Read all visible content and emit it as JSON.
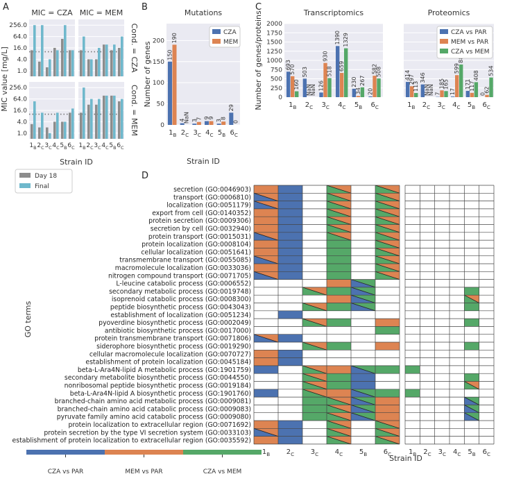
{
  "colors": {
    "cza_par": "#4c72b0",
    "mem_par": "#dd8452",
    "cza_mem": "#55a868",
    "day18": "#8c8c8c",
    "final": "#6fb8cc",
    "empty": "#ffffff",
    "grid_line": "#444444"
  },
  "panel_labels": {
    "a": "A",
    "b": "B",
    "c": "C",
    "d": "D"
  },
  "chart_data": [
    {
      "id": "A",
      "type": "bar",
      "title": "MIC",
      "column_titles": [
        "MIC = CZA",
        "MIC = MEM"
      ],
      "row_titles": [
        "Cond. = CZA",
        "Cond. = MEM"
      ],
      "ylabel": "MIC value [mg/L]",
      "xlabel": "Strain ID",
      "yscale": "log2",
      "yticks": [
        "1.0",
        "4.0",
        "16.0",
        "64.0",
        "256.0"
      ],
      "ytick_values": [
        1,
        4,
        16,
        64,
        256
      ],
      "ylim": [
        0.5,
        512
      ],
      "threshold": 10,
      "categories": [
        "1B",
        "2C",
        "3C",
        "4C",
        "5B",
        "6C"
      ],
      "category_labels": [
        {
          "base": "1",
          "sub": "B"
        },
        {
          "base": "2",
          "sub": "C"
        },
        {
          "base": "3",
          "sub": "C"
        },
        {
          "base": "4",
          "sub": "C"
        },
        {
          "base": "5",
          "sub": "B"
        },
        {
          "base": "6",
          "sub": "C"
        }
      ],
      "legend": [
        "Day 18",
        "Final"
      ],
      "panels": [
        {
          "day18": [
            12,
            3,
            1.5,
            16,
            48,
            12
          ],
          "final": [
            256,
            256,
            4,
            12,
            256,
            12
          ]
        },
        {
          "day18": [
            12,
            4,
            4,
            24,
            12,
            16
          ],
          "final": [
            64,
            4,
            16,
            24,
            24,
            64
          ]
        },
        {
          "day18": [
            3,
            2,
            2,
            4,
            4,
            12
          ],
          "final": [
            48,
            12,
            1,
            12,
            4,
            20
          ]
        },
        {
          "day18": [
            12,
            32,
            32,
            96,
            96,
            48
          ],
          "final": [
            256,
            64,
            64,
            96,
            96,
            64
          ]
        }
      ]
    },
    {
      "id": "B",
      "type": "bar",
      "title": "Mutations",
      "xlabel": "Strain ID",
      "ylabel": "Number of genes",
      "ylim": [
        0,
        240
      ],
      "yticks": [
        0,
        50,
        100,
        150,
        200
      ],
      "categories": [
        "1B",
        "2C",
        "3C",
        "4C",
        "5B",
        "6C"
      ],
      "category_labels": [
        {
          "base": "1",
          "sub": "B"
        },
        {
          "base": "2",
          "sub": "C"
        },
        {
          "base": "3",
          "sub": "C"
        },
        {
          "base": "4",
          "sub": "C"
        },
        {
          "base": "5",
          "sub": "B"
        },
        {
          "base": "6",
          "sub": "C"
        }
      ],
      "series": [
        {
          "name": "CZA",
          "values": [
            150,
            4,
            3,
            9,
            3,
            29
          ],
          "labels": [
            "150",
            "4",
            "3",
            "9",
            "3",
            "29"
          ]
        },
        {
          "name": "MEM",
          "values": [
            190,
            0,
            7,
            9,
            8,
            0
          ],
          "labels": [
            "190",
            "NaN",
            "7",
            "9",
            "8",
            "0"
          ]
        }
      ],
      "legend": [
        "CZA",
        "MEM"
      ]
    },
    {
      "id": "C",
      "type": "bar",
      "titles": [
        "Transcriptomics",
        "Proteomics"
      ],
      "ylabel": "Number of genes/proteins",
      "ylim": [
        0,
        2000
      ],
      "yticks": [
        0,
        250,
        500,
        750,
        1000,
        1250,
        1500,
        1750,
        2000
      ],
      "categories": [
        "1B",
        "2C",
        "3C",
        "4C",
        "5B",
        "6C"
      ],
      "category_labels": [
        {
          "base": "1",
          "sub": "B"
        },
        {
          "base": "2",
          "sub": "C"
        },
        {
          "base": "3",
          "sub": "C"
        },
        {
          "base": "4",
          "sub": "C"
        },
        {
          "base": "5",
          "sub": "B"
        },
        {
          "base": "6",
          "sub": "C"
        }
      ],
      "legend": [
        "CZA vs PAR",
        "MEM vs PAR",
        "CZA vs MEM"
      ],
      "transcriptomics": [
        {
          "name": "CZA vs PAR",
          "values": [
            693,
            503,
            126,
            1390,
            230,
            20
          ],
          "labels": [
            "693",
            "503",
            "126",
            "1390",
            "230",
            "20"
          ]
        },
        {
          "name": "MEM vs PAR",
          "values": [
            570,
            0,
            930,
            659,
            34,
            582
          ],
          "labels": [
            "570",
            "NaN",
            "930",
            "659",
            "34",
            "582"
          ]
        },
        {
          "name": "CZA vs MEM",
          "values": [
            160,
            0,
            518,
            1329,
            267,
            508
          ],
          "labels": [
            "160",
            "NaN",
            "518",
            "1329",
            "267",
            "508"
          ]
        }
      ],
      "proteomics": [
        {
          "name": "CZA vs PAR",
          "values": [
            414,
            346,
            7,
            17,
            171,
            0
          ],
          "labels": [
            "414",
            "346",
            "7",
            "17",
            "171",
            "0"
          ]
        },
        {
          "name": "MEM vs PAR",
          "values": [
            297,
            0,
            185,
            599,
            117,
            62
          ],
          "labels": [
            "297",
            "NaN",
            "185",
            "599",
            "117",
            "62"
          ]
        },
        {
          "name": "CZA vs MEM",
          "values": [
            113,
            0,
            165,
            888,
            408,
            534
          ],
          "labels": [
            "113",
            "NaN",
            "165",
            "888",
            "408",
            "534"
          ]
        }
      ]
    },
    {
      "id": "D",
      "type": "heatmap",
      "ylabel": "GO terms",
      "xlabel": "Strain ID",
      "categories": [
        "1B",
        "2C",
        "3C",
        "4C",
        "5B",
        "6C"
      ],
      "category_labels": [
        {
          "base": "1",
          "sub": "B"
        },
        {
          "base": "2",
          "sub": "C"
        },
        {
          "base": "3",
          "sub": "C"
        },
        {
          "base": "4",
          "sub": "C"
        },
        {
          "base": "5",
          "sub": "B"
        },
        {
          "base": "6",
          "sub": "C"
        }
      ],
      "cell_legend": {
        "o": "MEM vs PAR",
        "b": "CZA vs PAR",
        "g": "CZA vs MEM",
        "ob": "MEM vs PAR + CZA vs PAR",
        "gb": "CZA vs MEM + CZA vs PAR",
        "og": "MEM vs PAR + CZA vs MEM",
        ".": "none"
      },
      "terms": [
        "secretion (GO:0046903)",
        "transport (GO:0006810)",
        "localization (GO:0051179)",
        "export from cell (GO:0140352)",
        "protein secretion (GO:0009306)",
        "secretion by cell (GO:0032940)",
        "protein transport (GO:0015031)",
        "protein localization (GO:0008104)",
        "cellular localization (GO:0051641)",
        "transmembrane transport (GO:0055085)",
        "macromolecule localization (GO:0033036)",
        "nitrogen compound transport (GO:0071705)",
        "L-leucine catabolic process (GO:0006552)",
        "secondary metabolic process (GO:0019748)",
        "isoprenoid catabolic process (GO:0008300)",
        "peptide biosynthetic process (GO:0043043)",
        "establishment of localization (GO:0051234)",
        "pyoverdine biosynthetic process (GO:0002049)",
        "antibiotic biosynthetic process (GO:0017000)",
        "protein transmembrane transport (GO:0071806)",
        "siderophore biosynthetic process (GO:0019290)",
        "cellular macromolecule localization (GO:0070727)",
        "establishment of protein localization (GO:0045184)",
        "beta-L-Ara4N-lipid A metabolic process (GO:1901759)",
        "secondary metabolite biosynthetic process (GO:0044550)",
        "nonribosomal peptide biosynthetic process (GO:0019184)",
        "beta-L-Ara4N-lipid A biosynthetic process (GO:1901760)",
        "branched-chain amino acid metabolic process (GO:0009081)",
        "branched-chain amino acid catabolic process (GO:0009083)",
        "pyruvate family amino acid catabolic process (GO:0009080)",
        "protein localization to extracellular region (GO:0071692)",
        "protein secretion by the type VI secretion system (GO:0033103)",
        "establishment of protein localization to extracellular region (GO:0035592)"
      ],
      "transcriptomics_cells": [
        [
          "o",
          "b",
          ".",
          "og",
          ".",
          "og"
        ],
        [
          "ob",
          "b",
          ".",
          "og",
          ".",
          "og"
        ],
        [
          "ob",
          "b",
          ".",
          "og",
          ".",
          "og"
        ],
        [
          "o",
          "b",
          ".",
          "og",
          ".",
          "og"
        ],
        [
          "o",
          "b",
          ".",
          "og",
          ".",
          "og"
        ],
        [
          "o",
          "b",
          ".",
          "og",
          ".",
          "og"
        ],
        [
          "ob",
          "b",
          ".",
          "og",
          ".",
          "og"
        ],
        [
          "o",
          "b",
          ".",
          "g",
          ".",
          "og"
        ],
        [
          "o",
          "b",
          ".",
          "g",
          ".",
          "og"
        ],
        [
          "ob",
          "b",
          ".",
          "g",
          ".",
          "og"
        ],
        [
          "o",
          "b",
          ".",
          "g",
          ".",
          "og"
        ],
        [
          "ob",
          "b",
          ".",
          "g",
          ".",
          "og"
        ],
        [
          ".",
          ".",
          ".",
          "o",
          "gb",
          "."
        ],
        [
          ".",
          ".",
          "og",
          "g",
          "gb",
          "."
        ],
        [
          ".",
          ".",
          ".",
          "o",
          "gb",
          "."
        ],
        [
          ".",
          ".",
          "og",
          "g",
          "gb",
          "."
        ],
        [
          ".",
          "b",
          ".",
          ".",
          ".",
          "."
        ],
        [
          ".",
          ".",
          "og",
          "g",
          ".",
          "o"
        ],
        [
          ".",
          ".",
          ".",
          ".",
          ".",
          "g"
        ],
        [
          "ob",
          "b",
          ".",
          ".",
          ".",
          "."
        ],
        [
          ".",
          ".",
          "og",
          "g",
          ".",
          "o"
        ],
        [
          "o",
          "b",
          ".",
          ".",
          ".",
          "."
        ],
        [
          "o",
          "b",
          ".",
          ".",
          ".",
          "."
        ],
        [
          "b",
          ".",
          "og",
          "o",
          "gb",
          "g"
        ],
        [
          ".",
          ".",
          "og",
          "g",
          "b",
          "."
        ],
        [
          ".",
          ".",
          "og",
          "g",
          "b",
          "."
        ],
        [
          "b",
          ".",
          "og",
          "o",
          "gb",
          "g"
        ],
        [
          ".",
          ".",
          "g",
          "og",
          "gb",
          "o"
        ],
        [
          ".",
          ".",
          "g",
          "og",
          "gb",
          "o"
        ],
        [
          ".",
          ".",
          "g",
          "og",
          "gb",
          "o"
        ],
        [
          "o",
          "b",
          ".",
          "og",
          ".",
          "og"
        ],
        [
          "ob",
          "b",
          ".",
          "og",
          ".",
          "og"
        ],
        [
          "o",
          "b",
          ".",
          "og",
          ".",
          "og"
        ]
      ],
      "proteomics_cells": [
        [
          ".",
          ".",
          ".",
          ".",
          ".",
          "."
        ],
        [
          ".",
          ".",
          ".",
          ".",
          ".",
          "."
        ],
        [
          ".",
          ".",
          ".",
          ".",
          ".",
          "."
        ],
        [
          ".",
          ".",
          ".",
          ".",
          ".",
          "."
        ],
        [
          ".",
          ".",
          ".",
          ".",
          ".",
          "."
        ],
        [
          ".",
          ".",
          ".",
          ".",
          ".",
          "."
        ],
        [
          ".",
          ".",
          ".",
          ".",
          ".",
          "."
        ],
        [
          ".",
          ".",
          ".",
          ".",
          ".",
          "."
        ],
        [
          ".",
          ".",
          ".",
          ".",
          ".",
          "."
        ],
        [
          ".",
          ".",
          ".",
          ".",
          ".",
          "."
        ],
        [
          ".",
          ".",
          ".",
          ".",
          ".",
          "."
        ],
        [
          ".",
          ".",
          ".",
          ".",
          ".",
          "."
        ],
        [
          ".",
          ".",
          ".",
          ".",
          ".",
          "."
        ],
        [
          ".",
          ".",
          ".",
          ".",
          "g",
          "."
        ],
        [
          ".",
          ".",
          ".",
          ".",
          "og",
          "."
        ],
        [
          ".",
          ".",
          ".",
          ".",
          "g",
          "."
        ],
        [
          ".",
          ".",
          ".",
          ".",
          ".",
          "."
        ],
        [
          ".",
          ".",
          ".",
          ".",
          "g",
          "."
        ],
        [
          ".",
          ".",
          ".",
          ".",
          ".",
          "."
        ],
        [
          ".",
          ".",
          ".",
          ".",
          ".",
          "."
        ],
        [
          ".",
          ".",
          ".",
          ".",
          "g",
          "."
        ],
        [
          ".",
          ".",
          ".",
          ".",
          ".",
          "."
        ],
        [
          ".",
          ".",
          ".",
          ".",
          ".",
          "."
        ],
        [
          "g",
          ".",
          ".",
          ".",
          ".",
          "."
        ],
        [
          ".",
          ".",
          ".",
          ".",
          "g",
          "."
        ],
        [
          ".",
          ".",
          ".",
          ".",
          "og",
          "."
        ],
        [
          "g",
          ".",
          ".",
          ".",
          ".",
          "."
        ],
        [
          ".",
          ".",
          ".",
          ".",
          "gb",
          "."
        ],
        [
          ".",
          ".",
          ".",
          ".",
          "gb",
          "."
        ],
        [
          ".",
          ".",
          ".",
          ".",
          "gb",
          "."
        ],
        [
          ".",
          ".",
          ".",
          ".",
          ".",
          "."
        ],
        [
          ".",
          ".",
          ".",
          ".",
          ".",
          "."
        ],
        [
          ".",
          ".",
          ".",
          ".",
          ".",
          "."
        ]
      ],
      "colorbar": [
        "CZA vs PAR",
        "MEM vs PAR",
        "CZA vs MEM"
      ]
    }
  ]
}
